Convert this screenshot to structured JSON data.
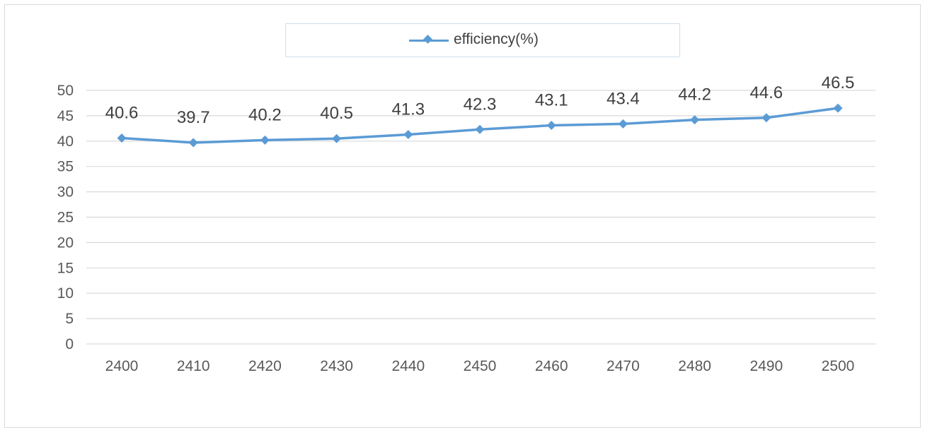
{
  "chart_data": {
    "type": "line",
    "categories": [
      "2400",
      "2410",
      "2420",
      "2430",
      "2440",
      "2450",
      "2460",
      "2470",
      "2480",
      "2490",
      "2500"
    ],
    "series": [
      {
        "name": "efficiency(%)",
        "values": [
          40.6,
          39.7,
          40.2,
          40.5,
          41.3,
          42.3,
          43.1,
          43.4,
          44.2,
          44.6,
          46.5
        ],
        "labels": [
          "40.6",
          "39.7",
          "40.2",
          "40.5",
          "41.3",
          "42.3",
          "43.1",
          "43.4",
          "44.2",
          "44.6",
          "46.5"
        ],
        "color": "#5b9bd5",
        "marker": "diamond"
      }
    ],
    "yticks": [
      "0",
      "5",
      "10",
      "15",
      "20",
      "25",
      "30",
      "35",
      "40",
      "45",
      "50"
    ],
    "ylim": [
      0,
      50
    ],
    "grid": true,
    "legend_position": "top-center"
  },
  "legend": {
    "label": "efficiency(%)"
  }
}
